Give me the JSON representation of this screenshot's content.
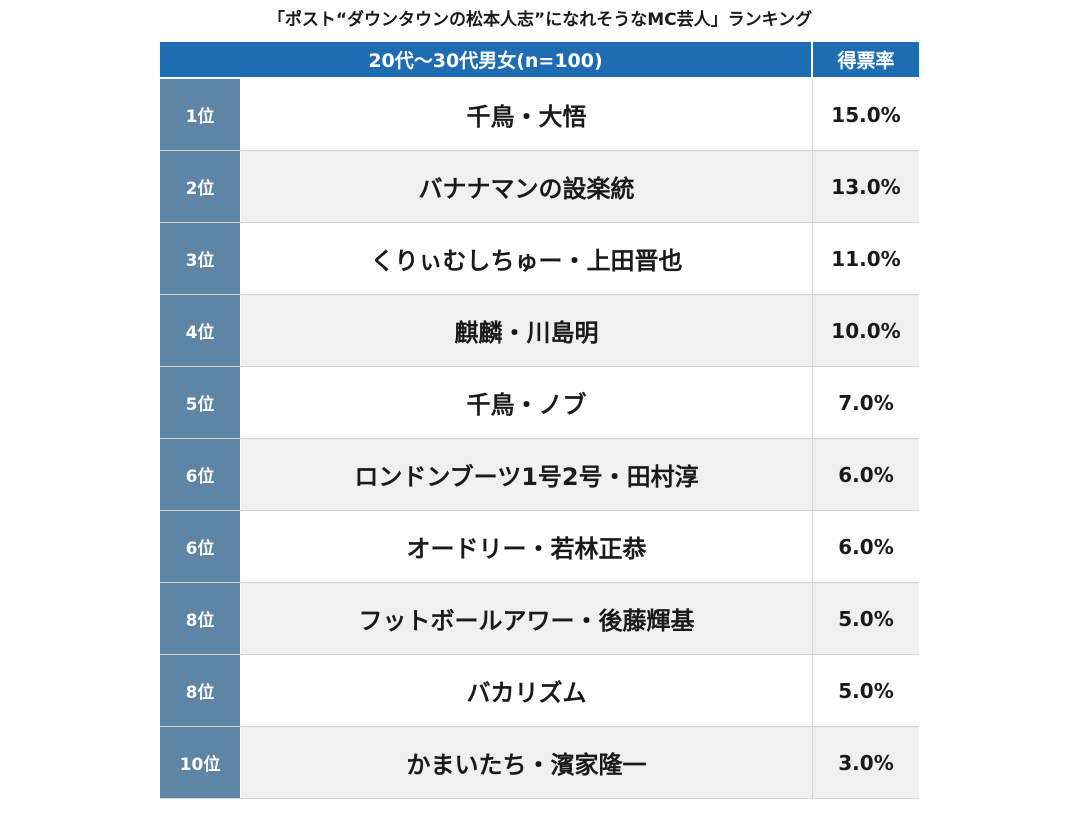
{
  "chart_data": {
    "type": "table",
    "title": "「ポスト“ダウンタウンの松本人志”になれそうなMC芸人」ランキング",
    "header": {
      "group_label": "20代〜30代男女(n=100)",
      "share_label": "得票率"
    },
    "rows": [
      {
        "rank": "1位",
        "name": "千鳥・大悟",
        "share": "15.0%",
        "value": 15.0
      },
      {
        "rank": "2位",
        "name": "バナナマンの設楽統",
        "share": "13.0%",
        "value": 13.0
      },
      {
        "rank": "3位",
        "name": "くりぃむしちゅー・上田晋也",
        "share": "11.0%",
        "value": 11.0
      },
      {
        "rank": "4位",
        "name": "麒麟・川島明",
        "share": "10.0%",
        "value": 10.0
      },
      {
        "rank": "5位",
        "name": "千鳥・ノブ",
        "share": "7.0%",
        "value": 7.0
      },
      {
        "rank": "6位",
        "name": "ロンドンブーツ1号2号・田村淳",
        "share": "6.0%",
        "value": 6.0
      },
      {
        "rank": "6位",
        "name": "オードリー・若林正恭",
        "share": "6.0%",
        "value": 6.0
      },
      {
        "rank": "8位",
        "name": "フットボールアワー・後藤輝基",
        "share": "5.0%",
        "value": 5.0
      },
      {
        "rank": "8位",
        "name": "バカリズム",
        "share": "5.0%",
        "value": 5.0
      },
      {
        "rank": "10位",
        "name": "かまいたち・濱家隆一",
        "share": "3.0%",
        "value": 3.0
      }
    ]
  },
  "colors": {
    "header_bg": "#1e6db3",
    "rank_bg": "#5e84a6",
    "row_alt_bg": "#f0f0f0"
  }
}
